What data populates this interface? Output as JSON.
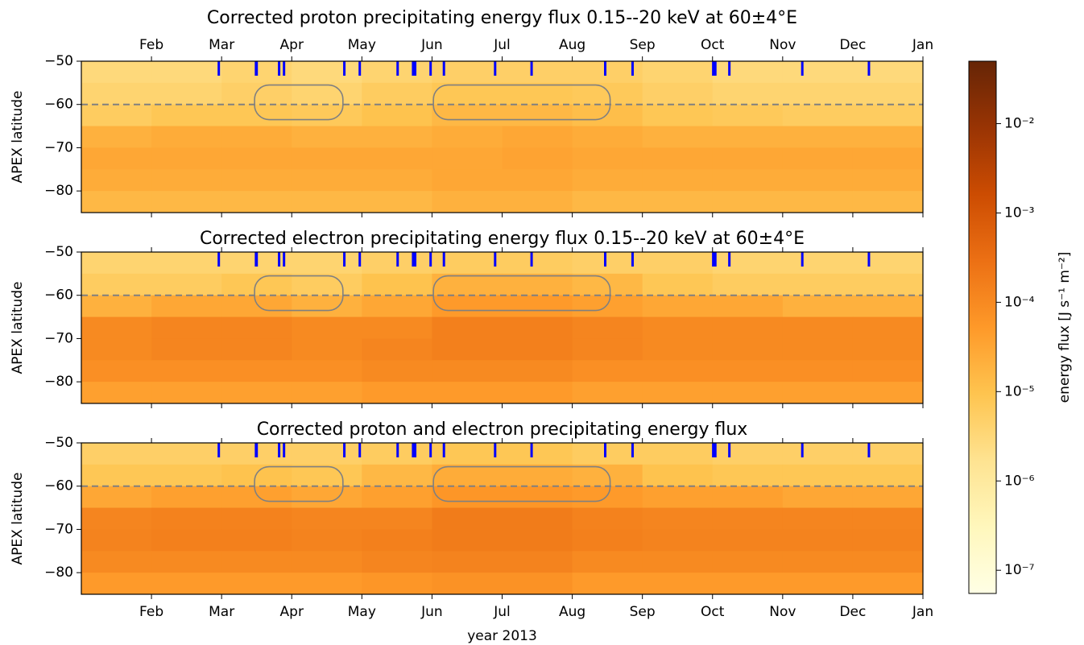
{
  "chart_data": {
    "type": "heatmap-panels",
    "xlim": [
      0,
      12
    ],
    "xbins": [
      0,
      1,
      2,
      3,
      4,
      5,
      6,
      7,
      8,
      9,
      10,
      11,
      12
    ],
    "ybins": [
      -50,
      -55,
      -60,
      -65,
      -70,
      -75,
      -80,
      -85
    ],
    "ylim": [
      -50,
      -85
    ],
    "hline": -60,
    "events": [
      1.96,
      2.49,
      2.5,
      2.82,
      2.89,
      3.75,
      3.97,
      4.51,
      4.73,
      4.76,
      4.98,
      5.17,
      5.9,
      6.42,
      7.47,
      7.86,
      9.01,
      9.04,
      9.24,
      10.28,
      11.23
    ],
    "event_color": "#0000ff",
    "highlights": [
      [
        2.47,
        3.73,
        -55.5,
        -63.5
      ],
      [
        5.02,
        7.54,
        -55.5,
        -63.5
      ]
    ],
    "panels": [
      {
        "title": "Corrected proton precipitating energy flux 0.15--20 keV at 60±4°E",
        "ylabel": "APEX latitude",
        "xaxis_position": "top",
        "xticks": [
          {
            "value": 1,
            "label": "Feb"
          },
          {
            "value": 2,
            "label": "Mar"
          },
          {
            "value": 3,
            "label": "Apr"
          },
          {
            "value": 4,
            "label": "May"
          },
          {
            "value": 5,
            "label": "Jun"
          },
          {
            "value": 6,
            "label": "Jul"
          },
          {
            "value": 7,
            "label": "Aug"
          },
          {
            "value": 8,
            "label": "Sep"
          },
          {
            "value": 9,
            "label": "Oct"
          },
          {
            "value": 10,
            "label": "Nov"
          },
          {
            "value": 11,
            "label": "Dec"
          },
          {
            "value": 12,
            "label": "Jan"
          }
        ],
        "yticks": [
          {
            "value": -50,
            "label": "−50"
          },
          {
            "value": -60,
            "label": "−60"
          },
          {
            "value": -70,
            "label": "−70"
          },
          {
            "value": -80,
            "label": "−80"
          }
        ],
        "values": [
          [
            3e-06,
            3e-06,
            4e-06,
            3e-06,
            4e-06,
            5e-06,
            5e-06,
            5e-06,
            4e-06,
            3e-06,
            3e-06,
            3e-06
          ],
          [
            4e-06,
            4e-06,
            5e-06,
            4e-06,
            6e-06,
            8e-06,
            8e-06,
            7e-06,
            5e-06,
            4e-06,
            4e-06,
            4e-06
          ],
          [
            6e-06,
            8e-06,
            8e-06,
            7e-06,
            1e-05,
            1.5e-05,
            1.5e-05,
            1.2e-05,
            8e-06,
            7e-06,
            6e-06,
            6e-06
          ],
          [
            2e-05,
            2.5e-05,
            2.5e-05,
            2e-05,
            2e-05,
            2.5e-05,
            3e-05,
            2.5e-05,
            2e-05,
            2e-05,
            2e-05,
            2e-05
          ],
          [
            3e-05,
            3e-05,
            3e-05,
            3e-05,
            3e-05,
            3e-05,
            3.5e-05,
            3e-05,
            3e-05,
            3e-05,
            3e-05,
            3e-05
          ],
          [
            2.5e-05,
            2.5e-05,
            2.5e-05,
            2.5e-05,
            2.5e-05,
            3e-05,
            3e-05,
            2.5e-05,
            2.5e-05,
            2.5e-05,
            2.5e-05,
            2.5e-05
          ],
          [
            1.5e-05,
            1.5e-05,
            1.5e-05,
            1.5e-05,
            1.5e-05,
            2e-05,
            2e-05,
            1.5e-05,
            1.5e-05,
            1.5e-05,
            1.5e-05,
            1.5e-05
          ]
        ]
      },
      {
        "title": "Corrected electron precipitating energy flux 0.15--20 keV at 60±4°E",
        "ylabel": "APEX latitude",
        "xticks": [
          1,
          2,
          3,
          4,
          5,
          6,
          7,
          8,
          9,
          10,
          11,
          12
        ],
        "show_xtick_labels": false,
        "yticks": [
          {
            "value": -50,
            "label": "−50"
          },
          {
            "value": -60,
            "label": "−60"
          },
          {
            "value": -70,
            "label": "−70"
          },
          {
            "value": -80,
            "label": "−80"
          }
        ],
        "values": [
          [
            4e-06,
            4e-06,
            4e-06,
            4e-06,
            5e-06,
            6e-06,
            6e-06,
            5e-06,
            5e-06,
            4e-06,
            4e-06,
            4e-06
          ],
          [
            6e-06,
            6e-06,
            8e-06,
            6e-06,
            1e-05,
            2e-05,
            2e-05,
            1.5e-05,
            8e-06,
            6e-06,
            6e-06,
            6e-06
          ],
          [
            2e-05,
            3e-05,
            3e-05,
            2e-05,
            3e-05,
            5e-05,
            5e-05,
            4e-05,
            3e-05,
            3e-05,
            2e-05,
            2e-05
          ],
          [
            0.0001,
            0.00012,
            0.00012,
            0.0001,
            0.0001,
            0.00015,
            0.00015,
            0.00012,
            0.0001,
            0.0001,
            0.0001,
            0.0001
          ],
          [
            0.0001,
            0.00012,
            0.00012,
            0.0001,
            0.00012,
            0.00015,
            0.00015,
            0.00012,
            0.0001,
            0.0001,
            0.0001,
            0.0001
          ],
          [
            8e-05,
            8e-05,
            8e-05,
            8e-05,
            0.0001,
            0.0001,
            0.0001,
            8e-05,
            8e-05,
            8e-05,
            8e-05,
            8e-05
          ],
          [
            4e-05,
            4e-05,
            4e-05,
            4e-05,
            5e-05,
            5e-05,
            5e-05,
            4e-05,
            4e-05,
            4e-05,
            4e-05,
            4e-05
          ]
        ]
      },
      {
        "title": "Corrected proton and electron precipitating energy flux",
        "ylabel": "APEX latitude",
        "xlabel": "year 2013",
        "xaxis_position": "bottom",
        "xticks": [
          {
            "value": 1,
            "label": "Feb"
          },
          {
            "value": 2,
            "label": "Mar"
          },
          {
            "value": 3,
            "label": "Apr"
          },
          {
            "value": 4,
            "label": "May"
          },
          {
            "value": 5,
            "label": "Jun"
          },
          {
            "value": 6,
            "label": "Jul"
          },
          {
            "value": 7,
            "label": "Aug"
          },
          {
            "value": 8,
            "label": "Sep"
          },
          {
            "value": 9,
            "label": "Oct"
          },
          {
            "value": 10,
            "label": "Nov"
          },
          {
            "value": 11,
            "label": "Dec"
          },
          {
            "value": 12,
            "label": "Jan"
          }
        ],
        "yticks": [
          {
            "value": -50,
            "label": "−50"
          },
          {
            "value": -60,
            "label": "−60"
          },
          {
            "value": -70,
            "label": "−70"
          },
          {
            "value": -80,
            "label": "−80"
          }
        ],
        "values": [
          [
            5e-06,
            5e-06,
            5e-06,
            5e-06,
            6e-06,
            8e-06,
            8e-06,
            6e-06,
            6e-06,
            5e-06,
            5e-06,
            5e-06
          ],
          [
            8e-06,
            8e-06,
            1e-05,
            8e-06,
            1.5e-05,
            2.5e-05,
            2.5e-05,
            2e-05,
            1e-05,
            8e-06,
            8e-06,
            8e-06
          ],
          [
            3e-05,
            4e-05,
            4e-05,
            3e-05,
            4e-05,
            6e-05,
            6e-05,
            5e-05,
            4e-05,
            4e-05,
            3e-05,
            3e-05
          ],
          [
            0.00012,
            0.00014,
            0.00014,
            0.00012,
            0.00012,
            0.00018,
            0.00018,
            0.00014,
            0.00012,
            0.00012,
            0.00012,
            0.00012
          ],
          [
            0.00013,
            0.00015,
            0.00015,
            0.00013,
            0.00015,
            0.00018,
            0.00018,
            0.00015,
            0.00013,
            0.00013,
            0.00013,
            0.00013
          ],
          [
            0.0001,
            0.0001,
            0.0001,
            0.0001,
            0.00012,
            0.00013,
            0.00013,
            0.0001,
            0.0001,
            0.0001,
            0.0001,
            0.0001
          ],
          [
            5e-05,
            5e-05,
            5e-05,
            5e-05,
            6e-05,
            7e-05,
            7e-05,
            5e-05,
            5e-05,
            5e-05,
            5e-05,
            5e-05
          ]
        ]
      }
    ],
    "colorbar": {
      "label": "energy flux [J s⁻¹ m⁻²]",
      "log": true,
      "lim": [
        5.5e-08,
        0.05
      ],
      "ticks": [
        {
          "value": 1e-07,
          "label": "10⁻⁷"
        },
        {
          "value": 1e-06,
          "label": "10⁻⁶"
        },
        {
          "value": 1e-05,
          "label": "10⁻⁵"
        },
        {
          "value": 0.0001,
          "label": "10⁻⁴"
        },
        {
          "value": 0.001,
          "label": "10⁻³"
        },
        {
          "value": 0.01,
          "label": "10⁻²"
        }
      ],
      "colormap": [
        "#ffffe5",
        "#fff7bc",
        "#fee391",
        "#fec44f",
        "#fe9929",
        "#ec7014",
        "#cc4c02",
        "#993404",
        "#662506"
      ]
    }
  }
}
